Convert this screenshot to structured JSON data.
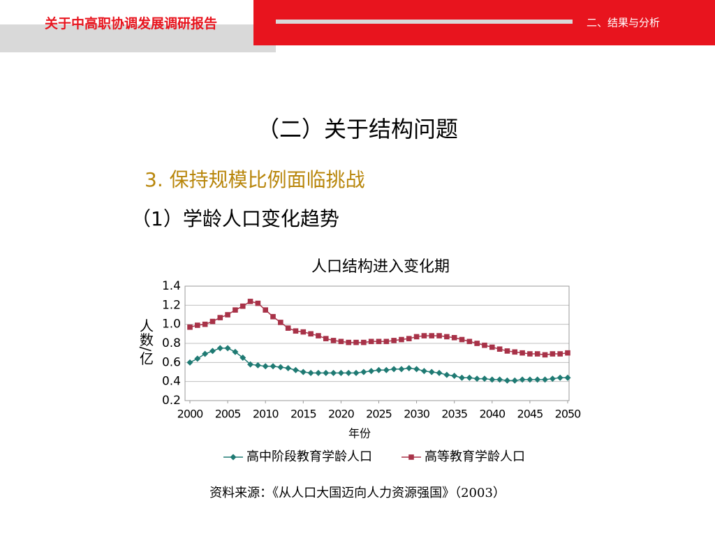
{
  "header": {
    "title": "关于中高职协调发展调研报告",
    "section": "二、结果与分析"
  },
  "headings": {
    "h1": "（二）关于结构问题",
    "h2": "3. 保持规模比例面临挑战",
    "h3": "（1）学龄人口变化趋势"
  },
  "chart_data": {
    "type": "line",
    "title": "人口结构进入变化期",
    "xlabel": "年份",
    "ylabel": "人数/亿",
    "x": [
      2000,
      2001,
      2002,
      2003,
      2004,
      2005,
      2006,
      2007,
      2008,
      2009,
      2010,
      2011,
      2012,
      2013,
      2014,
      2015,
      2016,
      2017,
      2018,
      2019,
      2020,
      2021,
      2022,
      2023,
      2024,
      2025,
      2026,
      2027,
      2028,
      2029,
      2030,
      2031,
      2032,
      2033,
      2034,
      2035,
      2036,
      2037,
      2038,
      2039,
      2040,
      2041,
      2042,
      2043,
      2044,
      2045,
      2046,
      2047,
      2048,
      2049,
      2050
    ],
    "series": [
      {
        "name": "高中阶段教育学龄人口",
        "color": "#1f7a73",
        "marker": "diamond",
        "values": [
          0.6,
          0.64,
          0.69,
          0.72,
          0.75,
          0.75,
          0.71,
          0.65,
          0.58,
          0.57,
          0.56,
          0.56,
          0.55,
          0.54,
          0.52,
          0.5,
          0.49,
          0.49,
          0.49,
          0.49,
          0.49,
          0.49,
          0.49,
          0.5,
          0.51,
          0.52,
          0.52,
          0.53,
          0.53,
          0.54,
          0.53,
          0.51,
          0.5,
          0.49,
          0.47,
          0.46,
          0.44,
          0.44,
          0.43,
          0.43,
          0.42,
          0.42,
          0.41,
          0.41,
          0.42,
          0.42,
          0.42,
          0.42,
          0.43,
          0.44,
          0.44
        ]
      },
      {
        "name": "高等教育学龄人口",
        "color": "#a83248",
        "marker": "square",
        "values": [
          0.97,
          0.99,
          1.0,
          1.03,
          1.07,
          1.1,
          1.15,
          1.19,
          1.24,
          1.22,
          1.15,
          1.08,
          1.02,
          0.96,
          0.93,
          0.92,
          0.9,
          0.88,
          0.85,
          0.83,
          0.82,
          0.81,
          0.81,
          0.81,
          0.82,
          0.82,
          0.82,
          0.83,
          0.84,
          0.85,
          0.87,
          0.88,
          0.88,
          0.88,
          0.87,
          0.86,
          0.84,
          0.82,
          0.8,
          0.78,
          0.76,
          0.74,
          0.72,
          0.71,
          0.7,
          0.69,
          0.69,
          0.68,
          0.69,
          0.69,
          0.7
        ]
      }
    ],
    "xlim": [
      2000,
      2050
    ],
    "xticks": [
      2000,
      2005,
      2010,
      2015,
      2020,
      2025,
      2030,
      2035,
      2040,
      2045,
      2050
    ],
    "ylim": [
      0.2,
      1.4
    ],
    "yticks": [
      0.2,
      0.4,
      0.6,
      0.8,
      {
        "value": 1,
        "label": "1.0"
      },
      1.2,
      1.4
    ],
    "grid": true,
    "legend": "bottom"
  },
  "source": "资料来源：《从人口大国迈向人力资源强国》（2003）"
}
